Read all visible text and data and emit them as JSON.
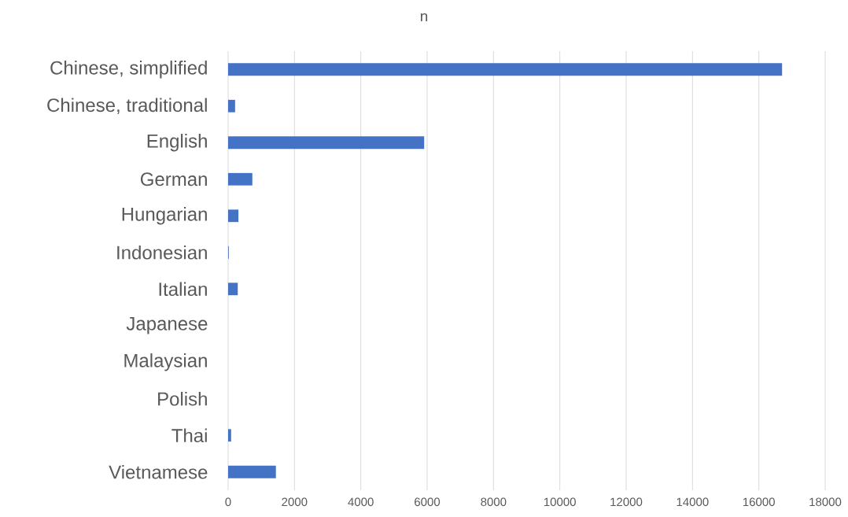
{
  "chart_data": {
    "type": "bar",
    "orientation": "horizontal",
    "title": "n",
    "categories": [
      "Chinese, simplified",
      "Chinese, traditional",
      "English",
      "German",
      "Hungarian",
      "Indonesian",
      "Italian",
      "Japanese",
      "Malaysian",
      "Polish",
      "Thai",
      "Vietnamese"
    ],
    "values": [
      16700,
      210,
      5910,
      730,
      310,
      20,
      290,
      0,
      0,
      0,
      90,
      1440
    ],
    "color": "#4472c4",
    "xlim": [
      0,
      18000
    ],
    "xticks": [
      0,
      2000,
      4000,
      6000,
      8000,
      10000,
      12000,
      14000,
      16000,
      18000
    ],
    "grid": "x"
  }
}
